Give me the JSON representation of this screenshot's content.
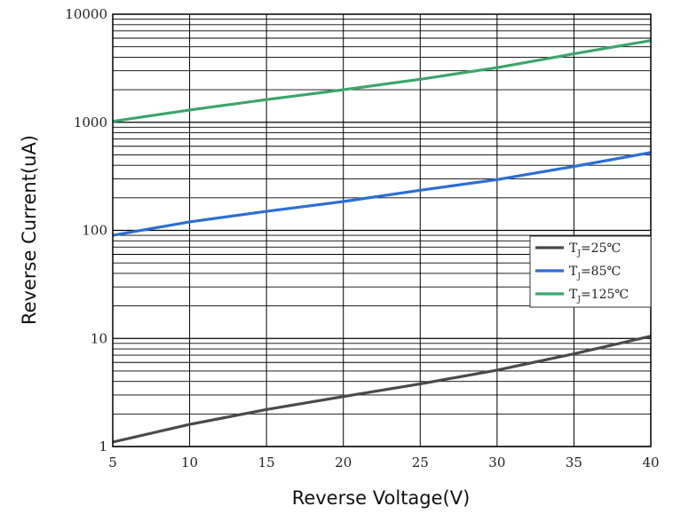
{
  "chart_data": {
    "type": "line",
    "xlabel": "Reverse Voltage(V)",
    "ylabel": "Reverse Current(uA)",
    "x_scale": "linear",
    "y_scale": "log",
    "xlim": [
      5,
      40
    ],
    "ylim": [
      1,
      10000
    ],
    "x_ticks": [
      "5",
      "10",
      "15",
      "20",
      "25",
      "30",
      "35",
      "40"
    ],
    "y_ticks": [
      "1",
      "10",
      "100",
      "1000",
      "10000"
    ],
    "grid": true,
    "legend_position": "right",
    "series": [
      {
        "name": "TJ=25℃",
        "label_main": "T",
        "label_sub": "J",
        "label_rest": "=25℃",
        "color": "#4a4a4a",
        "x": [
          5,
          10,
          15,
          20,
          25,
          30,
          35,
          40
        ],
        "y": [
          1.1,
          1.6,
          2.2,
          2.9,
          3.8,
          5.1,
          7.2,
          10.5
        ]
      },
      {
        "name": "TJ=85℃",
        "label_main": "T",
        "label_sub": "J",
        "label_rest": "=85℃",
        "color": "#2a6fd6",
        "x": [
          5,
          10,
          15,
          20,
          25,
          30,
          35,
          40
        ],
        "y": [
          90,
          120,
          150,
          185,
          235,
          295,
          390,
          525
        ]
      },
      {
        "name": "TJ=125℃",
        "label_main": "T",
        "label_sub": "J",
        "label_rest": "=125℃",
        "color": "#3aa66a",
        "x": [
          5,
          10,
          15,
          20,
          25,
          30,
          35,
          40
        ],
        "y": [
          1020,
          1300,
          1620,
          2000,
          2500,
          3200,
          4300,
          5700
        ]
      }
    ]
  }
}
